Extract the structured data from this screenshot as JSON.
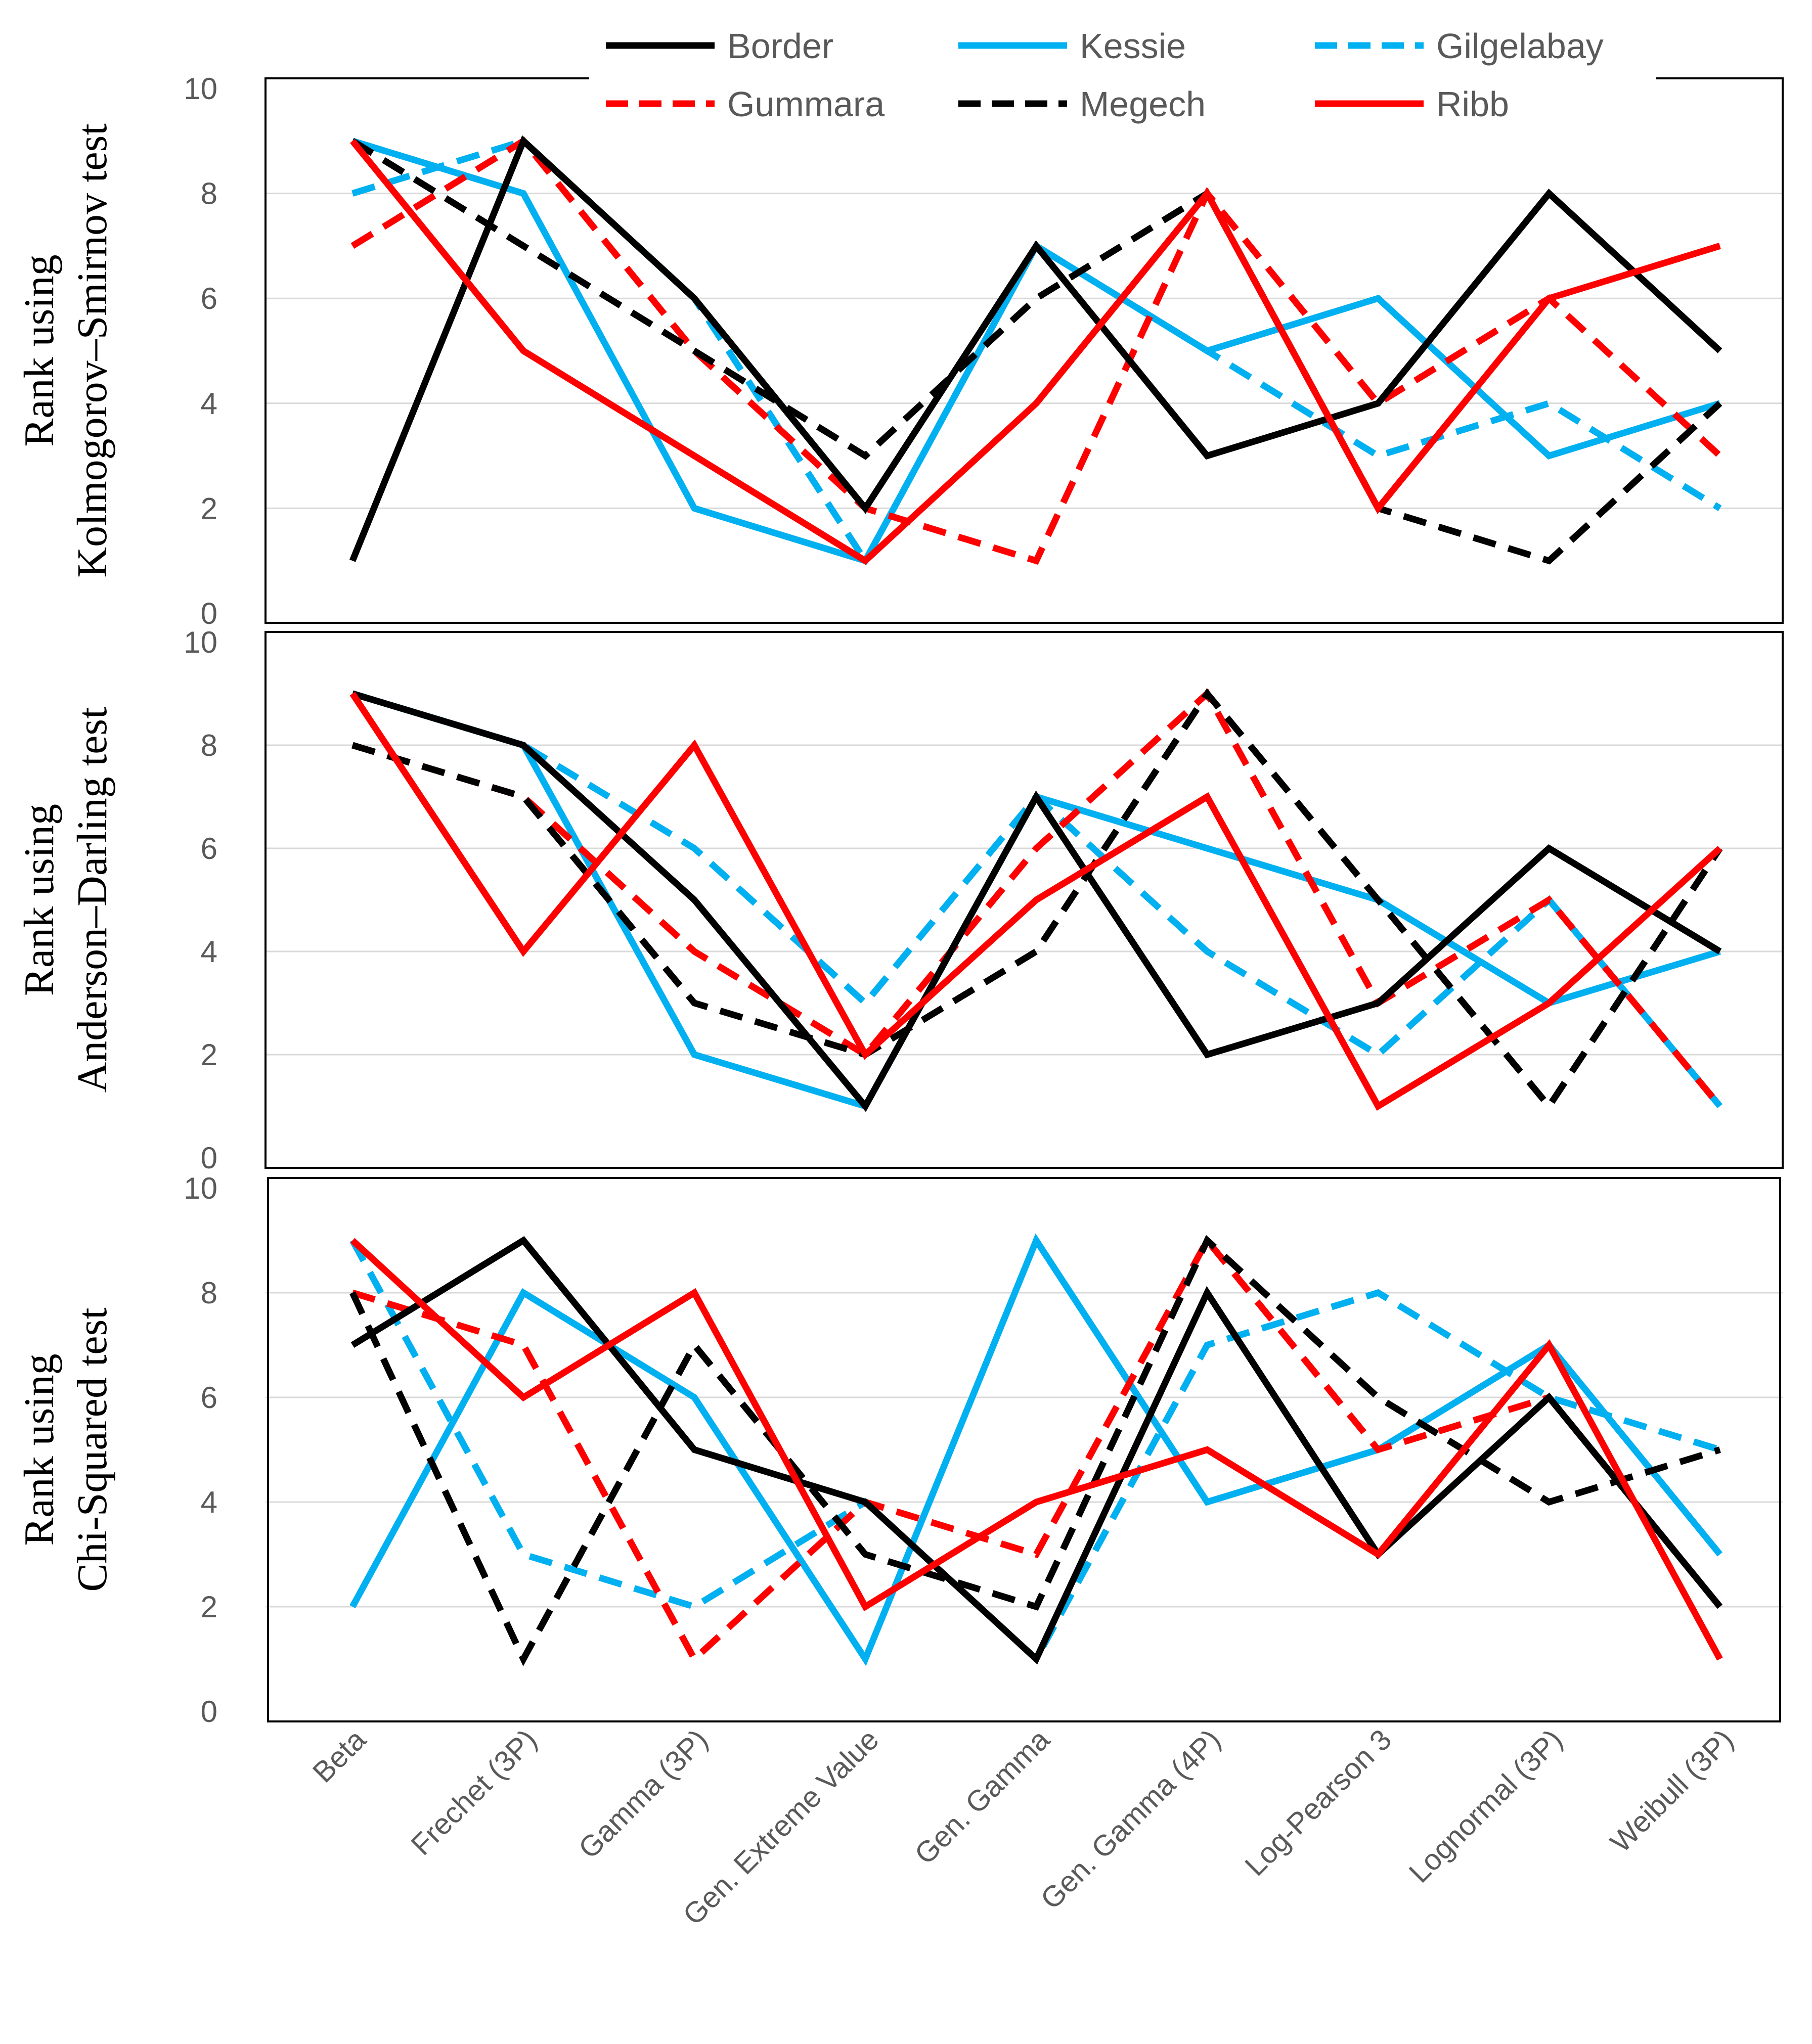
{
  "chart_data": {
    "type": "line",
    "categories": [
      "Beta",
      "Frechet (3P)",
      "Gamma (3P)",
      "Gen. Extreme Value",
      "Gen. Gamma",
      "Gen. Gamma (4P)",
      "Log-Pearson 3",
      "Lognormal (3P)",
      "Weibull (3P)"
    ],
    "ylim": [
      0,
      10
    ],
    "yticks": [
      "0",
      "2",
      "4",
      "6",
      "8",
      "10"
    ],
    "legend": [
      {
        "name": "Border",
        "color": "#000000",
        "dashed": false
      },
      {
        "name": "Kessie",
        "color": "#00b0f0",
        "dashed": false
      },
      {
        "name": "Gilgelabay",
        "color": "#00b0f0",
        "dashed": true
      },
      {
        "name": "Gummara",
        "color": "#ff0000",
        "dashed": true
      },
      {
        "name": "Megech",
        "color": "#000000",
        "dashed": true
      },
      {
        "name": "Ribb",
        "color": "#ff0000",
        "dashed": false
      }
    ],
    "panels": [
      {
        "ylabel_lines": [
          "Rank using",
          "Kolmogorov–Smirnov test"
        ],
        "series": [
          {
            "name": "Border",
            "values": [
              1,
              9,
              6,
              2,
              7,
              3,
              4,
              8,
              5
            ]
          },
          {
            "name": "Kessie",
            "values": [
              9,
              8,
              2,
              1,
              7,
              5,
              6,
              3,
              4
            ]
          },
          {
            "name": "Gilgelabay",
            "values": [
              8,
              9,
              6,
              1,
              7,
              5,
              3,
              4,
              2
            ]
          },
          {
            "name": "Gummara",
            "values": [
              7,
              9,
              5,
              2,
              1,
              8,
              4,
              6,
              3
            ]
          },
          {
            "name": "Megech",
            "values": [
              9,
              7,
              5,
              3,
              6,
              8,
              2,
              1,
              4
            ]
          },
          {
            "name": "Ribb",
            "values": [
              9,
              5,
              3,
              1,
              4,
              8,
              2,
              6,
              7
            ]
          }
        ]
      },
      {
        "ylabel_lines": [
          "Rank using",
          "Anderson–Darling  test"
        ],
        "series": [
          {
            "name": "Border",
            "values": [
              9,
              8,
              5,
              1,
              7,
              2,
              3,
              6,
              4
            ]
          },
          {
            "name": "Kessie",
            "values": [
              9,
              8,
              2,
              1,
              7,
              6,
              5,
              3,
              4
            ]
          },
          {
            "name": "Gilgelabay",
            "values": [
              9,
              8,
              6,
              3,
              7,
              4,
              2,
              5,
              1
            ]
          },
          {
            "name": "Gummara",
            "values": [
              8,
              7,
              4,
              2,
              6,
              9,
              3,
              5,
              1
            ]
          },
          {
            "name": "Megech",
            "values": [
              8,
              7,
              3,
              2,
              4,
              9,
              5,
              1,
              6
            ]
          },
          {
            "name": "Ribb",
            "values": [
              9,
              4,
              8,
              2,
              5,
              7,
              1,
              3,
              6
            ]
          }
        ]
      },
      {
        "ylabel_lines": [
          "Rank using",
          "Chi-Squared test"
        ],
        "series": [
          {
            "name": "Border",
            "values": [
              7,
              9,
              5,
              4,
              1,
              8,
              3,
              6,
              2
            ]
          },
          {
            "name": "Kessie",
            "values": [
              2,
              8,
              6,
              1,
              9,
              4,
              5,
              7,
              3
            ]
          },
          {
            "name": "Gilgelabay",
            "values": [
              9,
              3,
              2,
              4,
              1,
              7,
              8,
              6,
              5
            ]
          },
          {
            "name": "Gummara",
            "values": [
              8,
              7,
              1,
              4,
              3,
              9,
              5,
              6,
              2
            ]
          },
          {
            "name": "Megech",
            "values": [
              8,
              1,
              7,
              3,
              2,
              9,
              6,
              4,
              5
            ]
          },
          {
            "name": "Ribb",
            "values": [
              9,
              6,
              8,
              2,
              4,
              5,
              3,
              7,
              1
            ]
          }
        ]
      }
    ]
  }
}
